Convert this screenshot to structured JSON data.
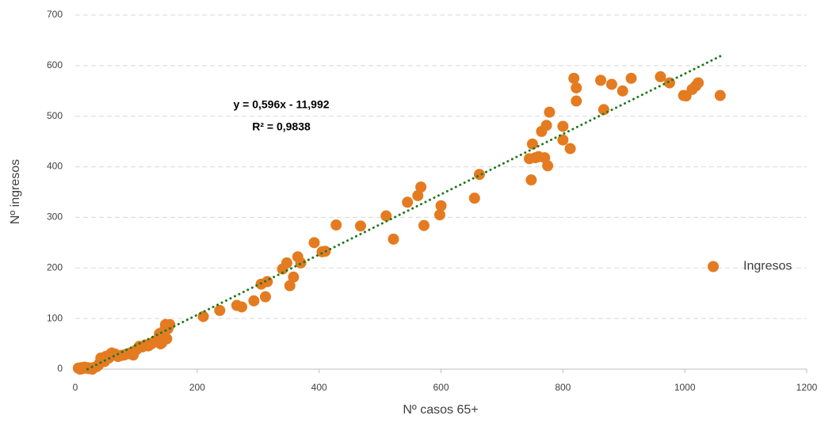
{
  "chart_data": {
    "type": "scatter",
    "x_label": "Nº casos 65+",
    "y_label": "Nº ingresos",
    "series": [
      {
        "name": "Ingresos",
        "color": "#e47b21",
        "x": [
          5,
          8,
          10,
          12,
          15,
          18,
          20,
          22,
          25,
          28,
          30,
          35,
          38,
          40,
          42,
          45,
          48,
          50,
          55,
          58,
          60,
          62,
          65,
          70,
          75,
          80,
          85,
          90,
          95,
          100,
          105,
          110,
          115,
          120,
          125,
          130,
          135,
          138,
          140,
          142,
          145,
          148,
          150,
          152,
          155,
          210,
          237,
          265,
          273,
          293,
          305,
          312,
          315,
          340,
          347,
          352,
          358,
          365,
          370,
          392,
          405,
          410,
          428,
          468,
          510,
          522,
          545,
          562,
          567,
          572,
          598,
          600,
          655,
          663,
          745,
          748,
          750,
          755,
          760,
          765,
          770,
          773,
          775,
          778,
          800,
          800,
          812,
          818,
          822,
          822,
          862,
          867,
          880,
          898,
          912,
          960,
          975,
          998,
          1002,
          1012,
          1018,
          1022,
          1058
        ],
        "values": [
          2,
          0,
          3,
          1,
          4,
          2,
          3,
          1,
          2,
          0,
          3,
          5,
          8,
          12,
          22,
          20,
          15,
          25,
          22,
          30,
          32,
          28,
          30,
          25,
          27,
          28,
          30,
          32,
          28,
          38,
          45,
          44,
          48,
          46,
          50,
          55,
          58,
          70,
          50,
          52,
          75,
          88,
          60,
          80,
          88,
          104,
          116,
          126,
          123,
          135,
          168,
          143,
          173,
          198,
          210,
          165,
          182,
          222,
          210,
          250,
          232,
          233,
          285,
          283,
          303,
          257,
          330,
          343,
          360,
          284,
          305,
          323,
          338,
          385,
          416,
          374,
          445,
          418,
          420,
          470,
          418,
          482,
          402,
          508,
          480,
          453,
          436,
          575,
          556,
          530,
          571,
          513,
          563,
          550,
          575,
          578,
          566,
          541,
          540,
          553,
          560,
          566,
          541
        ]
      }
    ],
    "trendline": {
      "equation": "y = 0,596x - 11,992",
      "r2": "R² = 0,9838",
      "slope": 0.596,
      "intercept": -11.992,
      "color": "#1e7a1e"
    },
    "xlim": [
      0,
      1200
    ],
    "xticks": [
      0,
      200,
      400,
      600,
      800,
      1000,
      1200
    ],
    "ylim": [
      0,
      700
    ],
    "yticks": [
      0,
      100,
      200,
      300,
      400,
      500,
      600,
      700
    ],
    "grid": true,
    "legend": "right"
  }
}
